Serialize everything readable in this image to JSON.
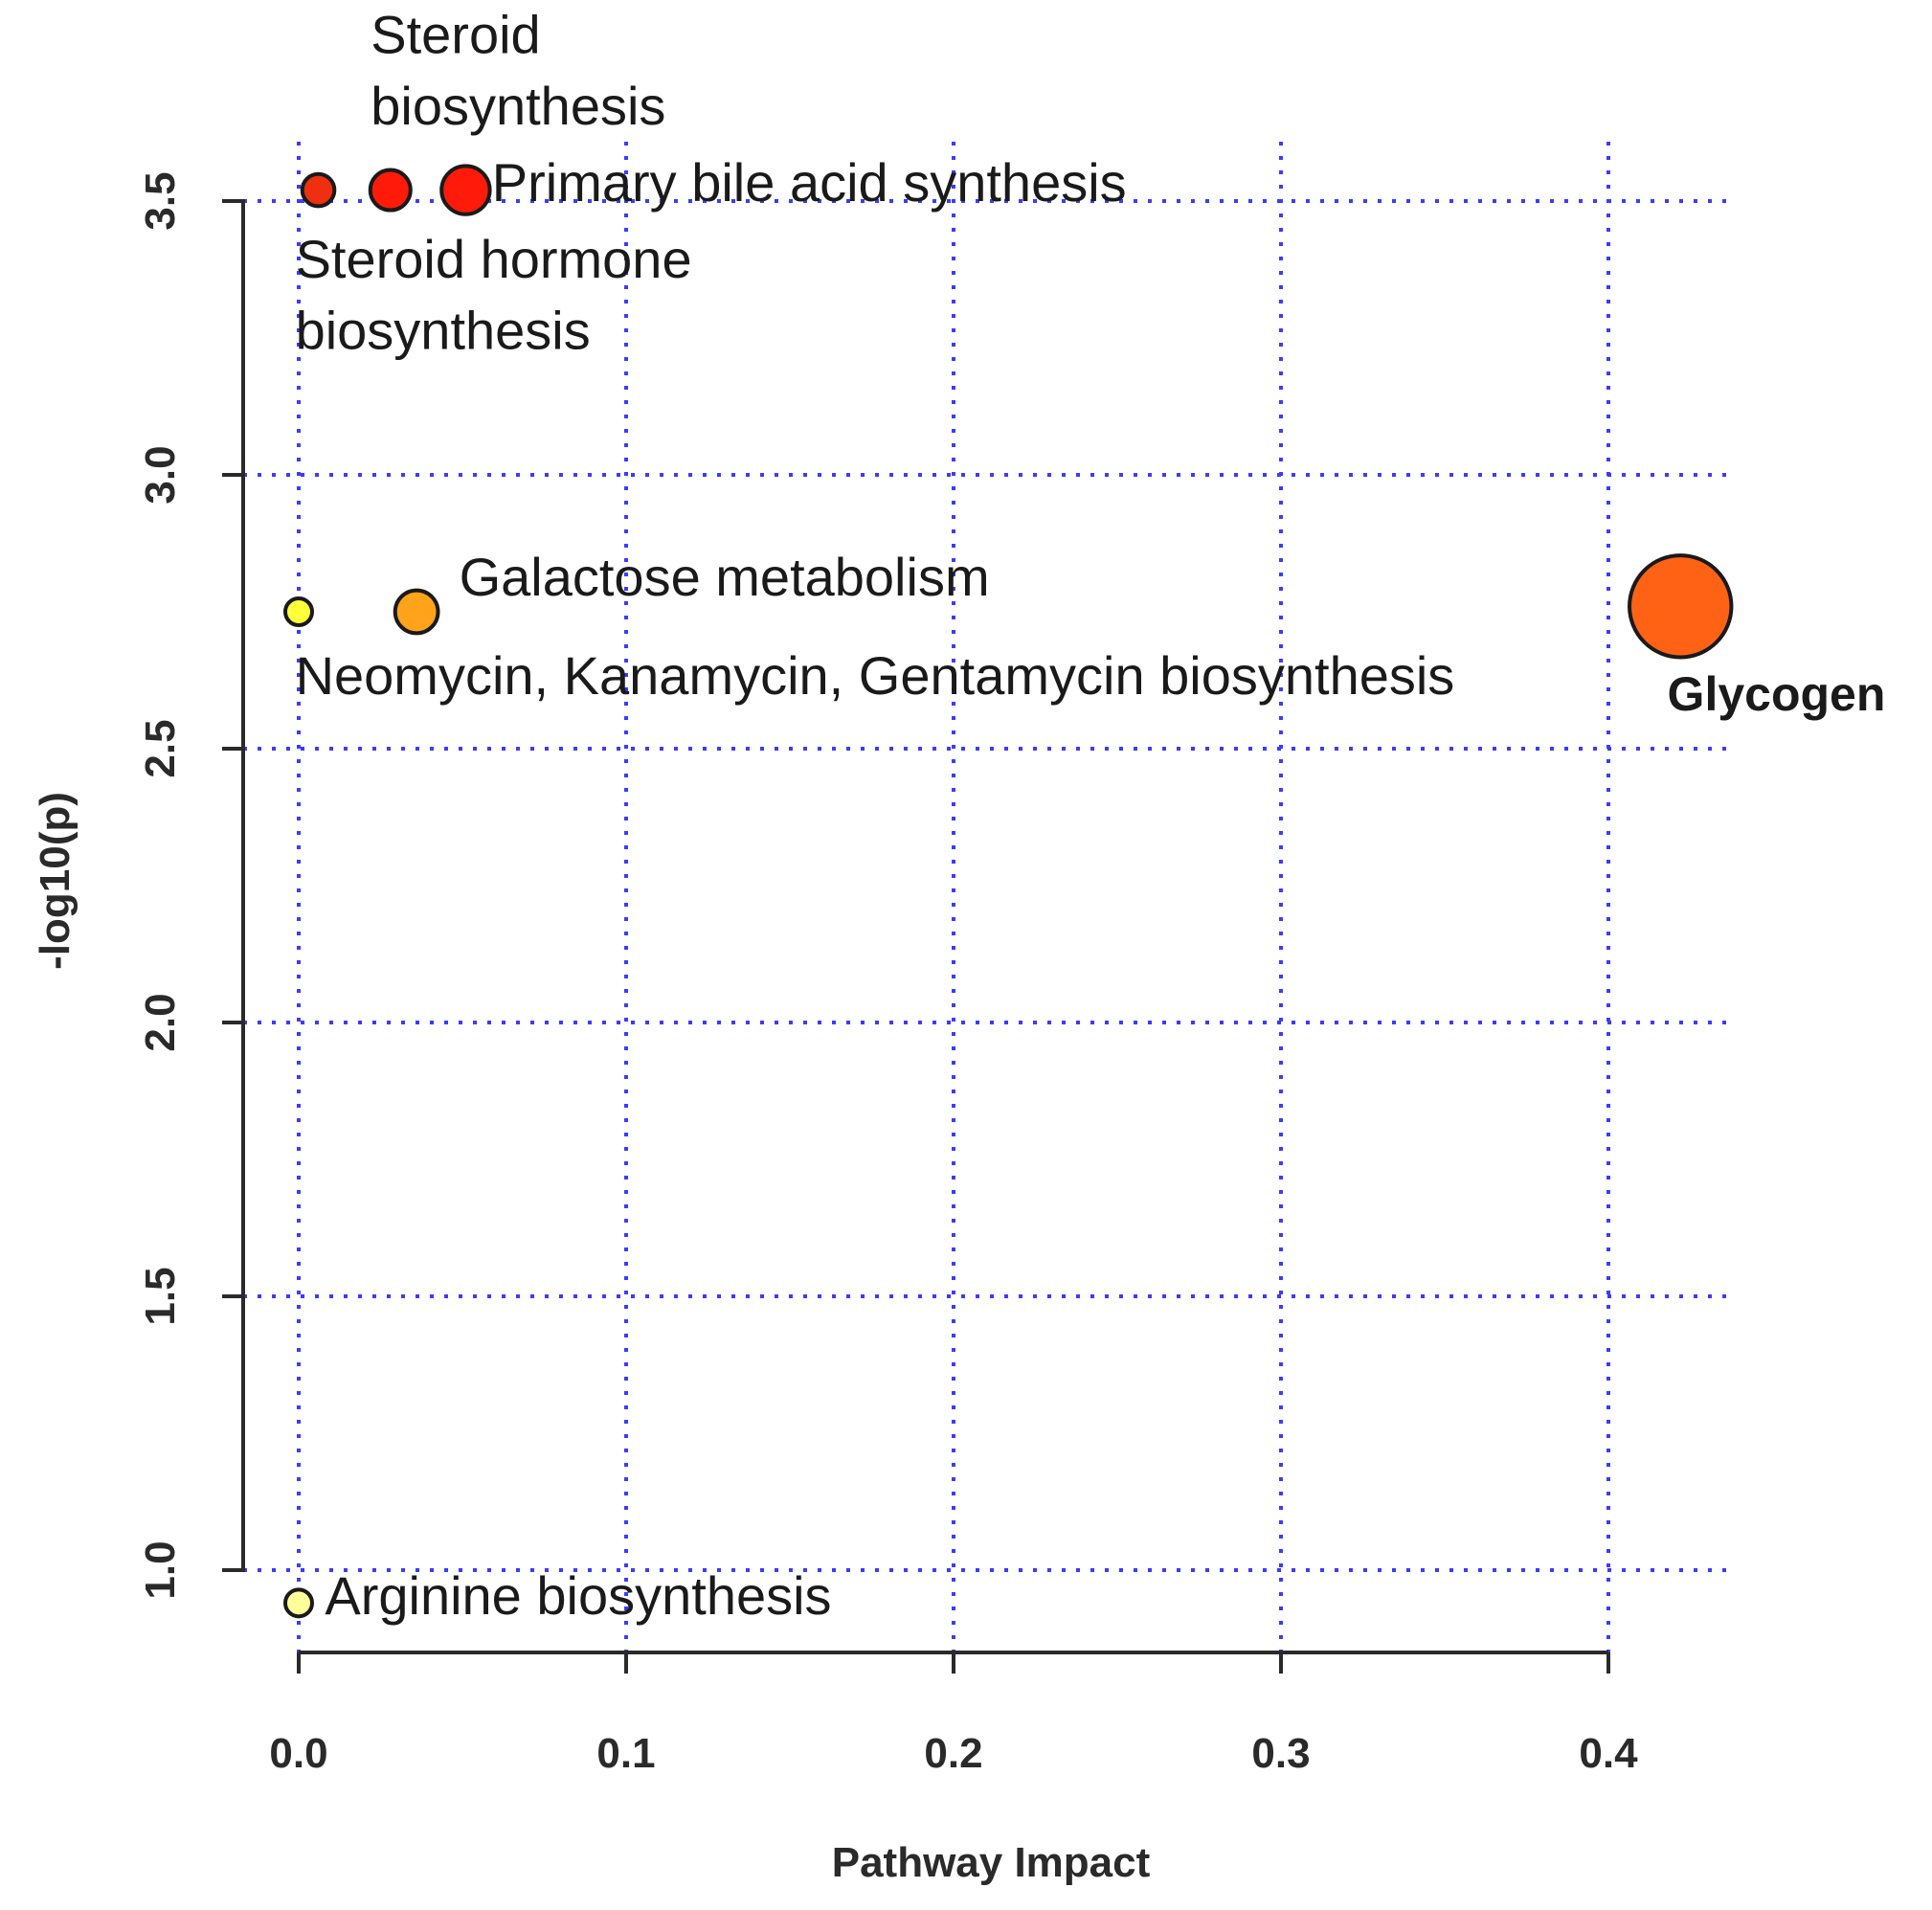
{
  "chart_data": {
    "type": "scatter",
    "title": "",
    "xlabel": "Pathway Impact",
    "ylabel": "-log10(p)",
    "xlim": [
      0.0,
      0.42
    ],
    "ylim": [
      0.9,
      3.55
    ],
    "x_ticks": [
      0.0,
      0.1,
      0.2,
      0.3,
      0.4
    ],
    "x_tick_labels": [
      "0.0",
      "0.1",
      "0.2",
      "0.3",
      "0.4"
    ],
    "y_ticks": [
      1.0,
      1.5,
      2.0,
      2.5,
      3.0,
      3.5
    ],
    "y_tick_labels": [
      "1.0",
      "1.5",
      "2.0",
      "2.5",
      "3.0",
      "3.5"
    ],
    "grid": true,
    "points": [
      {
        "x": 0.006,
        "y": 3.52,
        "size": 1.2,
        "color": "#ee3010"
      },
      {
        "x": 0.028,
        "y": 3.52,
        "size": 1.5,
        "color": "#ff1a0a"
      },
      {
        "x": 0.051,
        "y": 3.52,
        "size": 1.8,
        "color": "#ff1a0a"
      },
      {
        "x": 0.0,
        "y": 2.75,
        "size": 1.0,
        "color": "#ffff3a"
      },
      {
        "x": 0.036,
        "y": 2.75,
        "size": 1.6,
        "color": "#ffa31a"
      },
      {
        "x": 0.422,
        "y": 2.76,
        "size": 3.8,
        "color": "#ff6214"
      },
      {
        "x": 0.0,
        "y": 0.94,
        "size": 1.0,
        "color": "#ffff9a"
      }
    ],
    "annotations": [
      {
        "label": "Steroid",
        "x": 0.022,
        "y": 3.77,
        "bold": false
      },
      {
        "label": "biosynthesis",
        "x": 0.022,
        "y": 3.64,
        "bold": false
      },
      {
        "label": "Primary bile acid synthesis",
        "x": 0.059,
        "y": 3.5,
        "bold": false
      },
      {
        "label": "Steroid  hormone",
        "x": -0.001,
        "y": 3.36,
        "bold": false
      },
      {
        "label": "biosynthesis",
        "x": -0.001,
        "y": 3.23,
        "bold": false
      },
      {
        "label": "Galactose metabolism",
        "x": 0.049,
        "y": 2.78,
        "bold": false
      },
      {
        "label": "Neomycin, Kanamycin, Gentamycin biosynthesis",
        "x": -0.001,
        "y": 2.6,
        "bold": false
      },
      {
        "label": "Glycogen",
        "x": 0.418,
        "y": 2.57,
        "bold": true
      },
      {
        "label": "Arginine biosynthesis",
        "x": 0.008,
        "y": 0.92,
        "bold": false
      }
    ]
  }
}
